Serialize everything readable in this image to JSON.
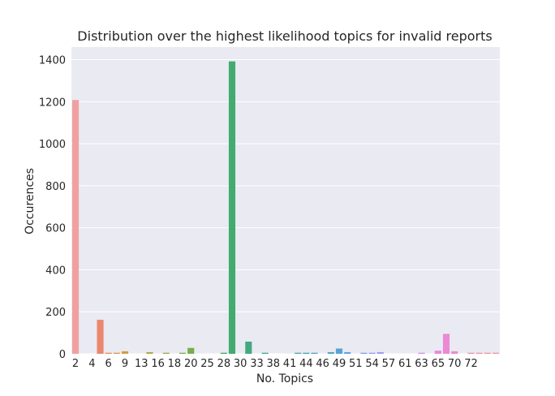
{
  "chart_data": {
    "type": "bar",
    "title": "Distribution over the highest likelihood topics for invalid reports",
    "xlabel": "No. Topics",
    "ylabel": "Occurences",
    "ylim": [
      0,
      1460
    ],
    "yticks": [
      0,
      200,
      400,
      600,
      800,
      1000,
      1200,
      1400
    ],
    "grid": true,
    "categories": [
      "2",
      "4",
      "6",
      "9",
      "13",
      "16",
      "18",
      "20",
      "25",
      "28",
      "30",
      "33",
      "38",
      "41",
      "44",
      "46",
      "49",
      "51",
      "54",
      "57",
      "61",
      "63",
      "65",
      "70",
      "72"
    ],
    "bars": [
      {
        "x": 1,
        "value": 1208,
        "color": "#f0a0a1"
      },
      {
        "x": 2,
        "value": 0,
        "color": "#f0988e"
      },
      {
        "x": 3,
        "value": 0,
        "color": "#ee9180"
      },
      {
        "x": 4,
        "value": 162,
        "color": "#e9886e"
      },
      {
        "x": 5,
        "value": 5,
        "color": "#e28e5a"
      },
      {
        "x": 6,
        "value": 5,
        "color": "#db954c"
      },
      {
        "x": 7,
        "value": 12,
        "color": "#d39c46"
      },
      {
        "x": 8,
        "value": 0,
        "color": "#c9a142"
      },
      {
        "x": 9,
        "value": 0,
        "color": "#bea542"
      },
      {
        "x": 10,
        "value": 8,
        "color": "#b1a743"
      },
      {
        "x": 11,
        "value": 0,
        "color": "#a3a946"
      },
      {
        "x": 12,
        "value": 5,
        "color": "#98ab48"
      },
      {
        "x": 13,
        "value": 0,
        "color": "#8cad4a"
      },
      {
        "x": 14,
        "value": 5,
        "color": "#80ae4c"
      },
      {
        "x": 15,
        "value": 28,
        "color": "#74af4e"
      },
      {
        "x": 16,
        "value": 0,
        "color": "#66b051"
      },
      {
        "x": 17,
        "value": 0,
        "color": "#58b055"
      },
      {
        "x": 18,
        "value": 0,
        "color": "#4bb05b"
      },
      {
        "x": 19,
        "value": 5,
        "color": "#44ad66"
      },
      {
        "x": 20,
        "value": 1392,
        "color": "#42ab6f"
      },
      {
        "x": 21,
        "value": 0,
        "color": "#43aa78"
      },
      {
        "x": 22,
        "value": 58,
        "color": "#43a980"
      },
      {
        "x": 23,
        "value": 0,
        "color": "#44a888"
      },
      {
        "x": 24,
        "value": 5,
        "color": "#45a78f"
      },
      {
        "x": 25,
        "value": 0,
        "color": "#46a696"
      },
      {
        "x": 26,
        "value": 0,
        "color": "#47a69c"
      },
      {
        "x": 27,
        "value": 0,
        "color": "#48a5a3"
      },
      {
        "x": 28,
        "value": 5,
        "color": "#49a5aa"
      },
      {
        "x": 29,
        "value": 5,
        "color": "#4aa5b1"
      },
      {
        "x": 30,
        "value": 5,
        "color": "#4ca5b9"
      },
      {
        "x": 31,
        "value": 0,
        "color": "#4ea5c2"
      },
      {
        "x": 32,
        "value": 8,
        "color": "#51a5cb"
      },
      {
        "x": 33,
        "value": 25,
        "color": "#55a4d6"
      },
      {
        "x": 34,
        "value": 8,
        "color": "#5fa3e0"
      },
      {
        "x": 35,
        "value": 0,
        "color": "#6ca2e9"
      },
      {
        "x": 36,
        "value": 5,
        "color": "#7ca0ee"
      },
      {
        "x": 37,
        "value": 5,
        "color": "#8c9ef0"
      },
      {
        "x": 38,
        "value": 8,
        "color": "#9b9cf1"
      },
      {
        "x": 39,
        "value": 0,
        "color": "#a89af1"
      },
      {
        "x": 40,
        "value": 0,
        "color": "#b597f0"
      },
      {
        "x": 41,
        "value": 0,
        "color": "#c194ef"
      },
      {
        "x": 42,
        "value": 0,
        "color": "#cc91ed"
      },
      {
        "x": 43,
        "value": 5,
        "color": "#d68dea"
      },
      {
        "x": 44,
        "value": 0,
        "color": "#e08ae5"
      },
      {
        "x": 45,
        "value": 15,
        "color": "#e888df"
      },
      {
        "x": 46,
        "value": 95,
        "color": "#eb89d4"
      },
      {
        "x": 47,
        "value": 12,
        "color": "#ec8bc9"
      },
      {
        "x": 48,
        "value": 0,
        "color": "#ed8dbd"
      },
      {
        "x": 49,
        "value": 5,
        "color": "#ee8fb2"
      },
      {
        "x": 50,
        "value": 5,
        "color": "#ef91a7"
      },
      {
        "x": 51,
        "value": 5,
        "color": "#f0949c"
      },
      {
        "x": 52,
        "value": 5,
        "color": "#f09797"
      }
    ],
    "colors": {
      "plot_background": "#eaeaf2",
      "grid": "#ffffff",
      "text": "#262626"
    }
  }
}
